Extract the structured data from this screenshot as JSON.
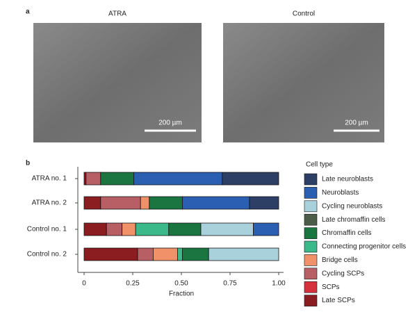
{
  "panel_labels": [
    "a",
    "b"
  ],
  "images": [
    {
      "title": "ATRA",
      "scale_bar": "200 µm"
    },
    {
      "title": "Control",
      "scale_bar": "200 µm"
    }
  ],
  "chart_data": {
    "type": "stacked-bar-horizontal",
    "categories": [
      "ATRA no. 1",
      "ATRA no. 2",
      "Control no. 1",
      "Control no. 2"
    ],
    "series": [
      {
        "name": "Late SCPs",
        "color": "#8b1c1f",
        "values": [
          0.01,
          0.085,
          0.115,
          0.275
        ]
      },
      {
        "name": "SCPs",
        "color": "#d6303c",
        "values": [
          0,
          0,
          0,
          0
        ]
      },
      {
        "name": "Cycling SCPs",
        "color": "#b85f66",
        "values": [
          0.075,
          0.205,
          0.08,
          0.08
        ]
      },
      {
        "name": "Bridge cells",
        "color": "#f1916a",
        "values": [
          0,
          0.045,
          0.07,
          0.125
        ]
      },
      {
        "name": "Connecting progenitor cells",
        "color": "#3bb98a",
        "values": [
          0,
          0,
          0.17,
          0.025
        ]
      },
      {
        "name": "Chromaffin cells",
        "color": "#1a7540",
        "values": [
          0.17,
          0.17,
          0.165,
          0.135
        ]
      },
      {
        "name": "Late chromaffin cells",
        "color": "#4b5c49",
        "values": [
          0,
          0,
          0,
          0
        ]
      },
      {
        "name": "Cycling neuroblasts",
        "color": "#a9d1dc",
        "values": [
          0,
          0,
          0.27,
          0.36
        ]
      },
      {
        "name": "Neuroblasts",
        "color": "#2a5fb2",
        "values": [
          0.455,
          0.345,
          0.13,
          0
        ]
      },
      {
        "name": "Late neuroblasts",
        "color": "#2d3f64",
        "values": [
          0.29,
          0.15,
          0,
          0
        ]
      }
    ],
    "xlim": [
      0,
      1
    ],
    "xticks": [
      0,
      0.25,
      {
        "value": 0.5,
        "label": "0.50"
      },
      {
        "value": 0.75,
        "label": "0.75"
      },
      {
        "value": 1,
        "label": "1.00"
      }
    ],
    "xlabel": "Fraction",
    "legend_title": "Cell type",
    "legend": "right"
  }
}
